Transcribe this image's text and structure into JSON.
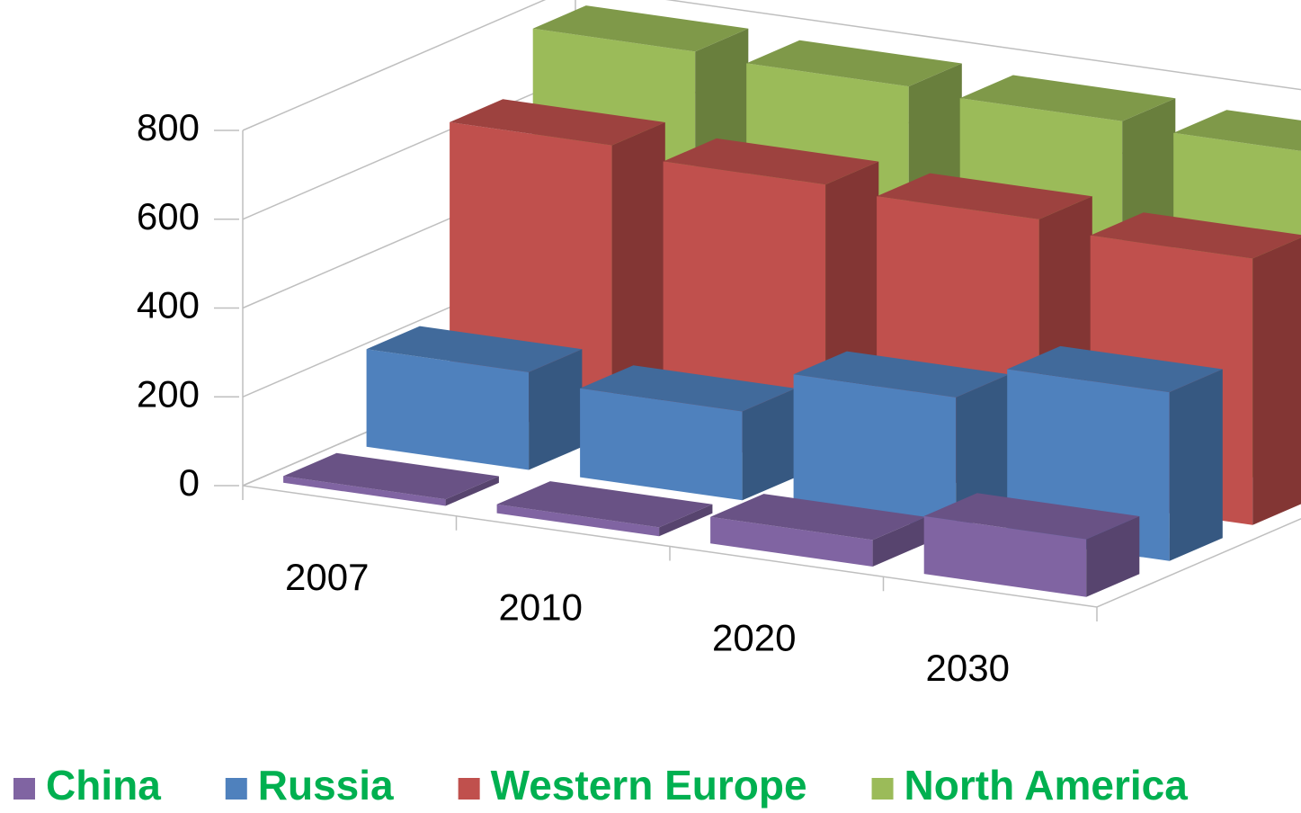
{
  "chart_data": {
    "type": "bar3d",
    "categories": [
      "2007",
      "2010",
      "2020",
      "2030"
    ],
    "series": [
      {
        "name": "China",
        "color": "#8064a2",
        "values": [
          15,
          20,
          60,
          130
        ]
      },
      {
        "name": "Russia",
        "color": "#4f81bd",
        "values": [
          220,
          200,
          300,
          380
        ]
      },
      {
        "name": "Western Europe",
        "color": "#c0504d",
        "values": [
          650,
          630,
          620,
          600
        ]
      },
      {
        "name": "North America",
        "color": "#9bbb59",
        "values": [
          780,
          770,
          760,
          750
        ]
      }
    ],
    "ylim": [
      0,
      800
    ],
    "yticks": [
      0,
      200,
      400,
      600,
      800
    ],
    "grid": true,
    "legend": "bottom"
  }
}
